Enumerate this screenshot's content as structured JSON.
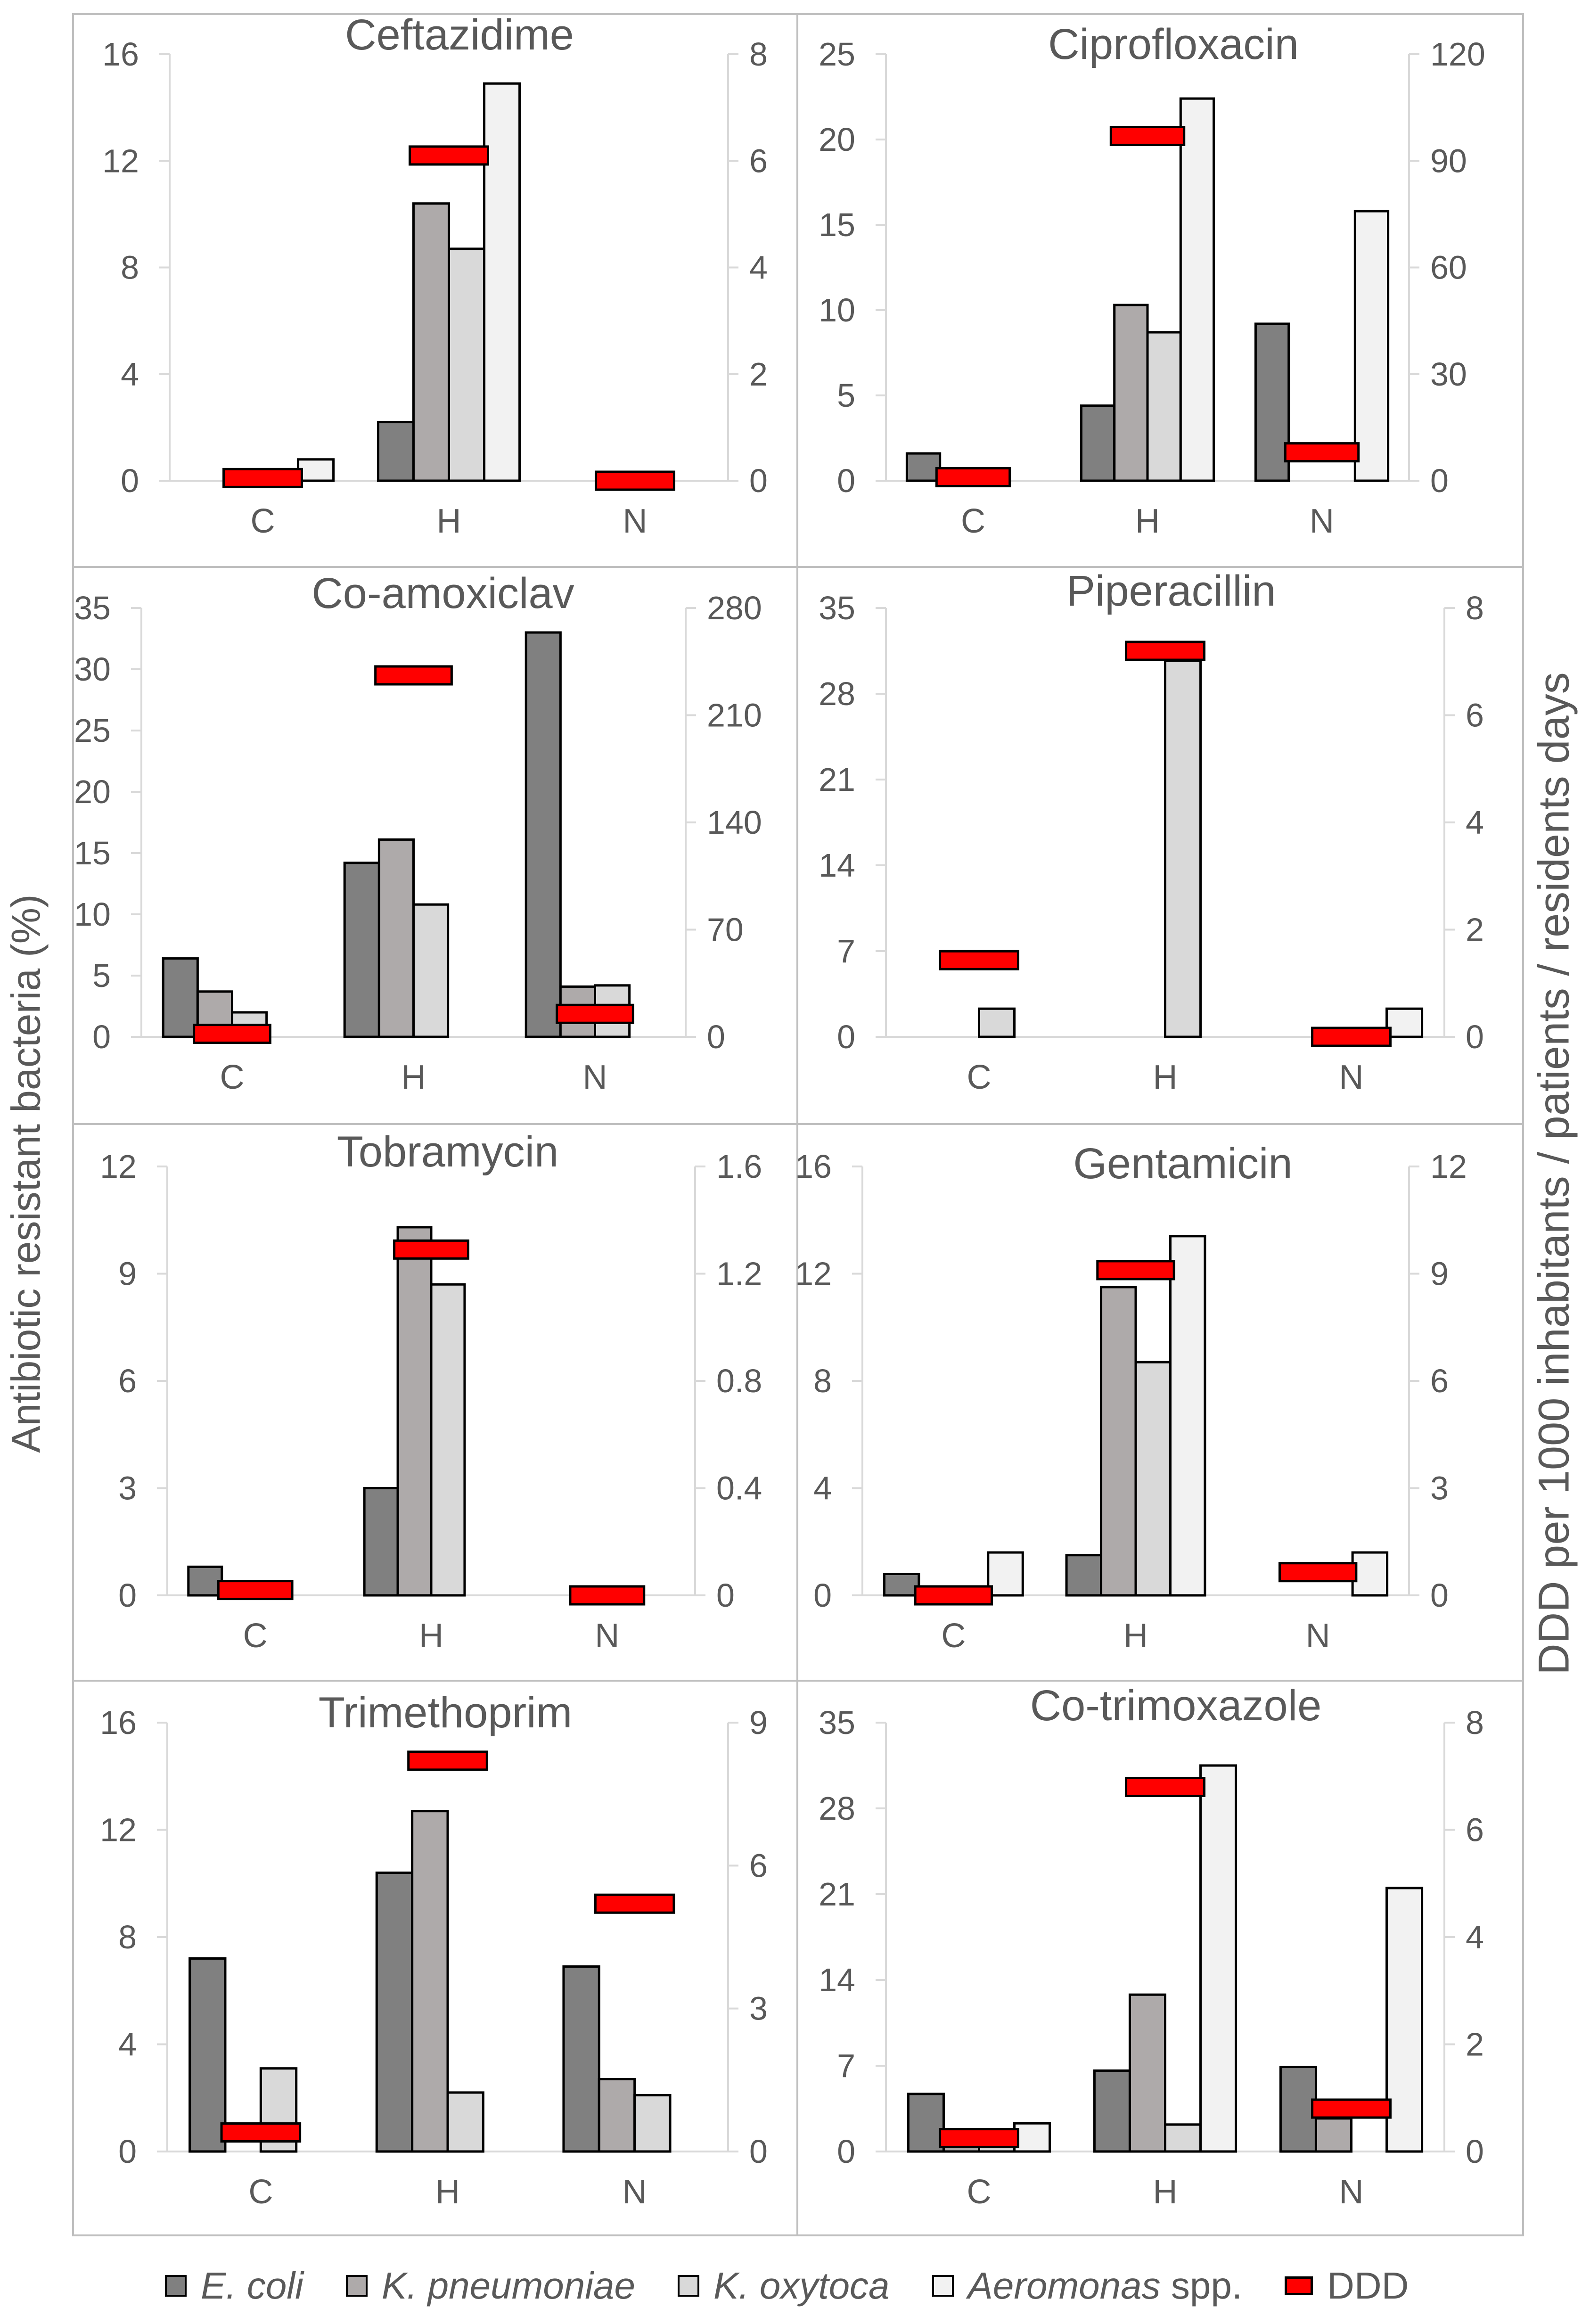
{
  "y_axis_left_title": "Antibiotic resistant bacteria (%)",
  "y_axis_right_title": "DDD per 1000 inhabitants / patients / residents days",
  "colors": {
    "e_coli": "#808080",
    "k_pneumoniae": "#aeaaaa",
    "k_oxytoca": "#d9d9d9",
    "aeromonas": "#f2f2f2",
    "ddd": "#ff0000"
  },
  "legend": [
    {
      "key": "e_coli",
      "label": "E. coli",
      "suffix": ""
    },
    {
      "key": "k_pneumoniae",
      "label": "K. pneumoniae",
      "suffix": ""
    },
    {
      "key": "k_oxytoca",
      "label": "K. oxytoca",
      "suffix": ""
    },
    {
      "key": "aeromonas",
      "label": "Aeromonas",
      "suffix": " spp."
    },
    {
      "key": "ddd",
      "label": "DDD",
      "suffix": ""
    }
  ],
  "chart_data": [
    {
      "type": "bar",
      "title": "Ceftazidime",
      "categories": [
        "C",
        "H",
        "N"
      ],
      "ylim": [
        0,
        16
      ],
      "yticks": [
        "0",
        "4",
        "8",
        "12",
        "16"
      ],
      "y2lim": [
        0,
        8
      ],
      "y2ticks": [
        "0",
        "2",
        "4",
        "6",
        "8"
      ],
      "series": [
        {
          "name": "E. coli",
          "key": "e_coli",
          "values": [
            0,
            2.2,
            0
          ]
        },
        {
          "name": "K. pneumoniae",
          "key": "k_pneumoniae",
          "values": [
            0,
            10.4,
            0
          ]
        },
        {
          "name": "K. oxytoca",
          "key": "k_oxytoca",
          "values": [
            0,
            8.7,
            0
          ]
        },
        {
          "name": "Aeromonas spp.",
          "key": "aeromonas",
          "values": [
            0.8,
            14.9,
            0
          ]
        }
      ],
      "ddd": [
        0.05,
        6.1,
        0
      ]
    },
    {
      "type": "bar",
      "title": "Ciprofloxacin",
      "categories": [
        "C",
        "H",
        "N"
      ],
      "ylim": [
        0,
        25
      ],
      "yticks": [
        "0",
        "5",
        "10",
        "15",
        "20",
        "25"
      ],
      "y2lim": [
        0,
        120
      ],
      "y2ticks": [
        "0",
        "30",
        "60",
        "90",
        "120"
      ],
      "series": [
        {
          "name": "E. coli",
          "key": "e_coli",
          "values": [
            1.6,
            4.4,
            9.2
          ]
        },
        {
          "name": "K. pneumoniae",
          "key": "k_pneumoniae",
          "values": [
            0,
            10.3,
            0
          ]
        },
        {
          "name": "K. oxytoca",
          "key": "k_oxytoca",
          "values": [
            0,
            8.7,
            0
          ]
        },
        {
          "name": "Aeromonas spp.",
          "key": "aeromonas",
          "values": [
            0,
            22.4,
            15.8
          ]
        }
      ],
      "ddd": [
        1,
        97,
        8
      ]
    },
    {
      "type": "bar",
      "title": "Co-amoxiclav",
      "categories": [
        "C",
        "H",
        "N"
      ],
      "ylim": [
        0,
        35
      ],
      "yticks": [
        "0",
        "5",
        "10",
        "15",
        "20",
        "25",
        "30",
        "35"
      ],
      "y2lim": [
        0,
        280
      ],
      "y2ticks": [
        "0",
        "70",
        "140",
        "210",
        "280"
      ],
      "series": [
        {
          "name": "E. coli",
          "key": "e_coli",
          "values": [
            6.4,
            14.2,
            33.0
          ]
        },
        {
          "name": "K. pneumoniae",
          "key": "k_pneumoniae",
          "values": [
            3.7,
            16.1,
            4.1
          ]
        },
        {
          "name": "K. oxytoca",
          "key": "k_oxytoca",
          "values": [
            2.0,
            10.8,
            4.2
          ]
        },
        {
          "name": "Aeromonas spp.",
          "key": "aeromonas",
          "values": [
            0,
            0,
            0
          ]
        }
      ],
      "ddd": [
        2,
        236,
        15
      ]
    },
    {
      "type": "bar",
      "title": "Piperacillin",
      "categories": [
        "C",
        "H",
        "N"
      ],
      "ylim": [
        0,
        35
      ],
      "yticks": [
        "0",
        "7",
        "14",
        "21",
        "28",
        "35"
      ],
      "y2lim": [
        0,
        8
      ],
      "y2ticks": [
        "0",
        "2",
        "4",
        "6",
        "8"
      ],
      "series": [
        {
          "name": "E. coli",
          "key": "e_coli",
          "values": [
            0,
            0,
            0
          ]
        },
        {
          "name": "K. pneumoniae",
          "key": "k_pneumoniae",
          "values": [
            0,
            0,
            0
          ]
        },
        {
          "name": "K. oxytoca",
          "key": "k_oxytoca",
          "values": [
            2.3,
            30.7,
            0
          ]
        },
        {
          "name": "Aeromonas spp.",
          "key": "aeromonas",
          "values": [
            0,
            0,
            2.3
          ]
        }
      ],
      "ddd": [
        1.43,
        7.2,
        0
      ]
    },
    {
      "type": "bar",
      "title": "Tobramycin",
      "categories": [
        "C",
        "H",
        "N"
      ],
      "ylim": [
        0,
        12
      ],
      "yticks": [
        "0",
        "3",
        "6",
        "9",
        "12"
      ],
      "y2lim": [
        0,
        1.6
      ],
      "y2ticks": [
        "0",
        "0.4",
        "0.8",
        "1.2",
        "1.6"
      ],
      "series": [
        {
          "name": "E. coli",
          "key": "e_coli",
          "values": [
            0.8,
            3.0,
            0
          ]
        },
        {
          "name": "K. pneumoniae",
          "key": "k_pneumoniae",
          "values": [
            0,
            10.3,
            0
          ]
        },
        {
          "name": "K. oxytoca",
          "key": "k_oxytoca",
          "values": [
            0,
            8.7,
            0
          ]
        },
        {
          "name": "Aeromonas spp.",
          "key": "aeromonas",
          "values": [
            0,
            0,
            0
          ]
        }
      ],
      "ddd": [
        0.02,
        1.29,
        0
      ]
    },
    {
      "type": "bar",
      "title": "Gentamicin",
      "categories": [
        "C",
        "H",
        "N"
      ],
      "ylim": [
        0,
        16
      ],
      "yticks": [
        "0",
        "4",
        "8",
        "12",
        "16"
      ],
      "y2lim": [
        0,
        12
      ],
      "y2ticks": [
        "0",
        "3",
        "6",
        "9",
        "12"
      ],
      "series": [
        {
          "name": "E. coli",
          "key": "e_coli",
          "values": [
            0.8,
            1.5,
            0
          ]
        },
        {
          "name": "K. pneumoniae",
          "key": "k_pneumoniae",
          "values": [
            0,
            11.5,
            0
          ]
        },
        {
          "name": "K. oxytoca",
          "key": "k_oxytoca",
          "values": [
            0,
            8.7,
            0
          ]
        },
        {
          "name": "Aeromonas spp.",
          "key": "aeromonas",
          "values": [
            1.6,
            13.4,
            1.6
          ]
        }
      ],
      "ddd": [
        0,
        9.1,
        0.65
      ]
    },
    {
      "type": "bar",
      "title": "Trimethoprim",
      "categories": [
        "C",
        "H",
        "N"
      ],
      "ylim": [
        0,
        16
      ],
      "yticks": [
        "0",
        "4",
        "8",
        "12",
        "16"
      ],
      "y2lim": [
        0,
        9
      ],
      "y2ticks": [
        "0",
        "3",
        "6",
        "9"
      ],
      "series": [
        {
          "name": "E. coli",
          "key": "e_coli",
          "values": [
            7.2,
            10.4,
            6.9
          ]
        },
        {
          "name": "K. pneumoniae",
          "key": "k_pneumoniae",
          "values": [
            0,
            12.7,
            2.7
          ]
        },
        {
          "name": "K. oxytoca",
          "key": "k_oxytoca",
          "values": [
            3.1,
            2.2,
            2.1
          ]
        },
        {
          "name": "Aeromonas spp.",
          "key": "aeromonas",
          "values": [
            0,
            0,
            0
          ]
        }
      ],
      "ddd": [
        0.4,
        8.2,
        5.2
      ]
    },
    {
      "type": "bar",
      "title": "Co-trimoxazole",
      "categories": [
        "C",
        "H",
        "N"
      ],
      "ylim": [
        0,
        35
      ],
      "yticks": [
        "0",
        "7",
        "14",
        "21",
        "28",
        "35"
      ],
      "y2lim": [
        0,
        8
      ],
      "y2ticks": [
        "0",
        "2",
        "4",
        "6",
        "8"
      ],
      "series": [
        {
          "name": "E. coli",
          "key": "e_coli",
          "values": [
            4.7,
            6.6,
            6.9
          ]
        },
        {
          "name": "K. pneumoniae",
          "key": "k_pneumoniae",
          "values": [
            1.7,
            12.8,
            2.7
          ]
        },
        {
          "name": "K. oxytoca",
          "key": "k_oxytoca",
          "values": [
            1.8,
            2.2,
            0
          ]
        },
        {
          "name": "Aeromonas spp.",
          "key": "aeromonas",
          "values": [
            2.3,
            31.5,
            21.5
          ]
        }
      ],
      "ddd": [
        0.25,
        6.8,
        0.8
      ]
    }
  ]
}
